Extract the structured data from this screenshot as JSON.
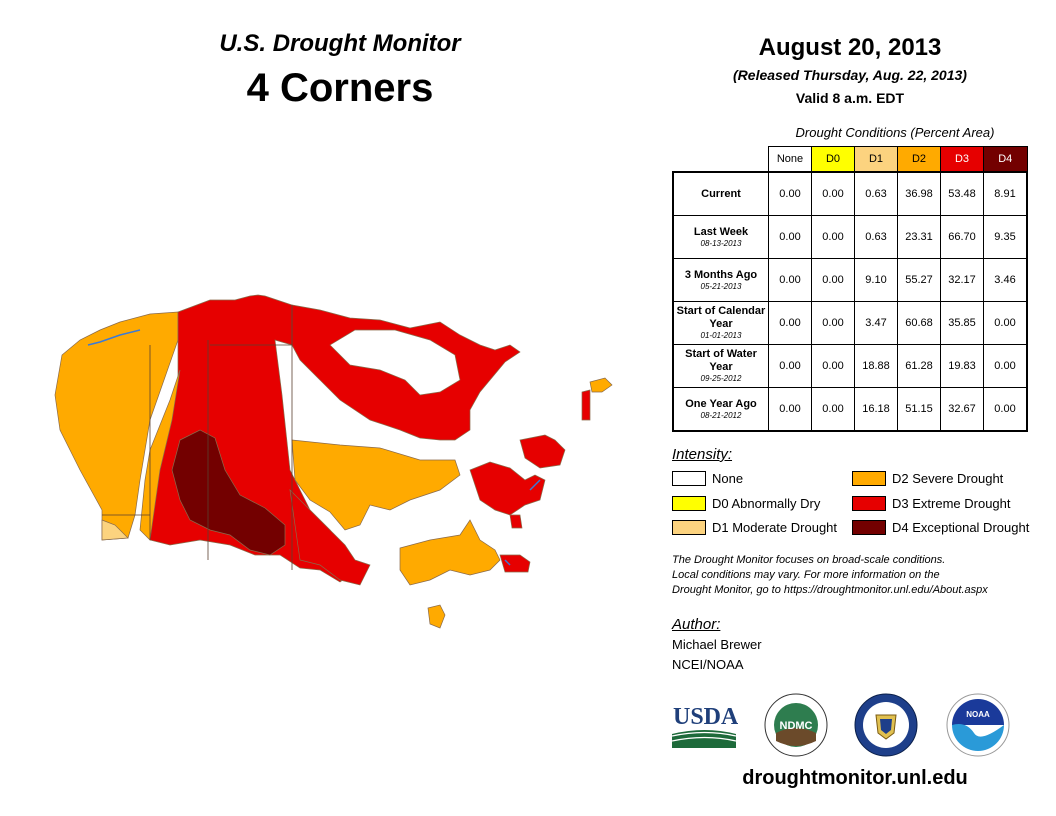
{
  "header": {
    "subtitle": "U.S. Drought Monitor",
    "region": "4 Corners",
    "date": "August 20, 2013",
    "released": "(Released Thursday, Aug. 22, 2013)",
    "valid": "Valid 8 a.m. EDT"
  },
  "table": {
    "caption": "Drought Conditions (Percent Area)",
    "columns": [
      "None",
      "D0",
      "D1",
      "D2",
      "D3",
      "D4"
    ],
    "rows": [
      {
        "label": "Current",
        "date": "",
        "values": [
          "0.00",
          "0.00",
          "0.63",
          "36.98",
          "53.48",
          "8.91"
        ]
      },
      {
        "label": "Last Week",
        "date": "08-13-2013",
        "values": [
          "0.00",
          "0.00",
          "0.63",
          "23.31",
          "66.70",
          "9.35"
        ]
      },
      {
        "label": "3 Months Ago",
        "date": "05-21-2013",
        "values": [
          "0.00",
          "0.00",
          "9.10",
          "55.27",
          "32.17",
          "3.46"
        ]
      },
      {
        "label": "Start of Calendar Year",
        "date": "01-01-2013",
        "values": [
          "0.00",
          "0.00",
          "3.47",
          "60.68",
          "35.85",
          "0.00"
        ]
      },
      {
        "label": "Start of Water Year",
        "date": "09-25-2012",
        "values": [
          "0.00",
          "0.00",
          "18.88",
          "61.28",
          "19.83",
          "0.00"
        ]
      },
      {
        "label": "One Year Ago",
        "date": "08-21-2012",
        "values": [
          "0.00",
          "0.00",
          "16.18",
          "51.15",
          "32.67",
          "0.00"
        ]
      }
    ]
  },
  "legend": {
    "title": "Intensity:",
    "items": [
      {
        "label": "None",
        "color": "#ffffff"
      },
      {
        "label": "D0 Abnormally Dry",
        "color": "#ffff00"
      },
      {
        "label": "D1 Moderate Drought",
        "color": "#fcd37f"
      },
      {
        "label": "D2 Severe Drought",
        "color": "#ffaa00"
      },
      {
        "label": "D3 Extreme Drought",
        "color": "#e60000"
      },
      {
        "label": "D4 Exceptional Drought",
        "color": "#730000"
      }
    ]
  },
  "note": {
    "line1": "The Drought Monitor focuses on broad-scale conditions.",
    "line2": "Local conditions may vary. For more information on the",
    "line3": "Drought Monitor, go to https://droughtmonitor.unl.edu/About.aspx"
  },
  "author": {
    "title": "Author:",
    "name": "Michael Brewer",
    "org": "NCEI/NOAA"
  },
  "logos": {
    "usda": "USDA",
    "ndmc": "NDMC",
    "noaa": "NOAA"
  },
  "site": "droughtmonitor.unl.edu",
  "colors": {
    "none": "#ffffff",
    "d0": "#ffff00",
    "d1": "#fcd37f",
    "d2": "#ffaa00",
    "d3": "#e60000",
    "d4": "#730000"
  }
}
